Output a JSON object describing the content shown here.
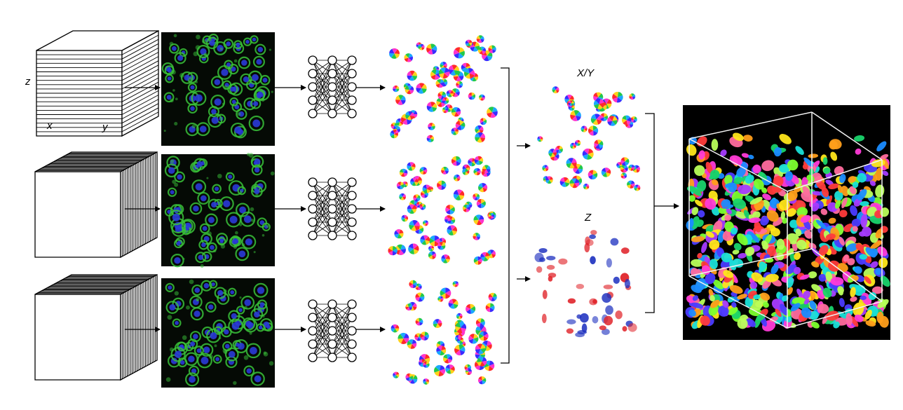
{
  "labels": {
    "axis_z": "z",
    "axis_x": "x",
    "axis_y": "y",
    "xy_title": "X/Y",
    "z_title": "Z"
  },
  "colors": {
    "stroke": "#000000",
    "micro_bg": "#050a05",
    "micro_cell": "#39c23a",
    "micro_nucleus": "#2a3ad8",
    "flow_palette": [
      "#ff2a2a",
      "#ffd21a",
      "#22c94a",
      "#1aa8ff",
      "#3a2bff",
      "#ff33cc"
    ],
    "z_red": "#e0242a",
    "z_blue": "#1c2fbf",
    "seg_bg": "#000000",
    "seg_box": "#f2f2f2",
    "seg_palette": [
      "#ff3b3b",
      "#ff9e1a",
      "#ffe61a",
      "#7cff2e",
      "#19d36b",
      "#19e0d8",
      "#1a8cff",
      "#4b3bff",
      "#a63bff",
      "#ff3bd8",
      "#ff6b9e",
      "#b8ff5a"
    ]
  },
  "rows": [
    {
      "slice_direction": "horizontal"
    },
    {
      "slice_direction": "vertical"
    },
    {
      "slice_direction": "vertical"
    }
  ]
}
